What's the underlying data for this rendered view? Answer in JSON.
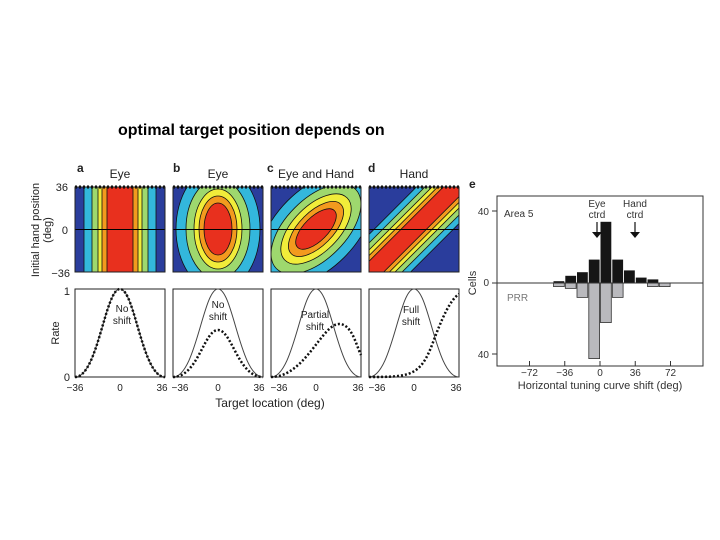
{
  "slide": {
    "caption": "optimal target position depends on"
  },
  "figure": {
    "panels": [
      {
        "letter": "a",
        "title": "Eye",
        "curve_label": [
          "No",
          "shift"
        ]
      },
      {
        "letter": "b",
        "title": "Eye",
        "curve_label": [
          "No",
          "shift"
        ]
      },
      {
        "letter": "c",
        "title": "Eye and Hand",
        "curve_label": [
          "Partial",
          "shift"
        ]
      },
      {
        "letter": "d",
        "title": "Hand",
        "curve_label": [
          "Full",
          "shift"
        ]
      }
    ],
    "left_ylabel_top": [
      "Initial hand position",
      "(deg)"
    ],
    "left_yticks_top": [
      "36",
      "0",
      "−36"
    ],
    "left_ylabel_bottom": "Rate",
    "left_yticks_bottom": [
      "1",
      "0"
    ],
    "left_xticks": [
      "−36",
      "0",
      "36"
    ],
    "left_xlabel": "Target location (deg)",
    "colors": {
      "red": "#e8301e",
      "orange": "#f39a1e",
      "yellow": "#f1ec3a",
      "lightgreen": "#9ed86e",
      "cyan": "#33b7dc",
      "blue": "#2a3d9c"
    }
  },
  "chart_data": {
    "type": "bar",
    "panel_letter": "e",
    "xlabel": "Horizontal tuning curve shift (deg)",
    "ylabel": "Cells",
    "x_ticks": [
      "−72",
      "−36",
      "0",
      "36",
      "72"
    ],
    "y_ticks_top": "40",
    "y_ticks_mid": "0",
    "y_ticks_bottom": "40",
    "xlim": [
      -96,
      96
    ],
    "bin_width": 12,
    "bin_centers": [
      -90,
      -78,
      -66,
      -54,
      -42,
      -30,
      -18,
      -6,
      6,
      18,
      30,
      42,
      54,
      66,
      78,
      90
    ],
    "series": [
      {
        "name": "Area 5",
        "direction": "up",
        "values": [
          0,
          0,
          0,
          0,
          1,
          4,
          6,
          13,
          34,
          13,
          7,
          3,
          2,
          0,
          0,
          0
        ]
      },
      {
        "name": "PRR",
        "direction": "down",
        "values": [
          0,
          0,
          0,
          0,
          2,
          3,
          8,
          42,
          22,
          8,
          0,
          0,
          2,
          2,
          0,
          0
        ]
      }
    ],
    "annotations": [
      {
        "text": [
          "Eye",
          "ctrd"
        ],
        "x": 0
      },
      {
        "text": [
          "Hand",
          "ctrd"
        ],
        "x": 36
      }
    ]
  }
}
